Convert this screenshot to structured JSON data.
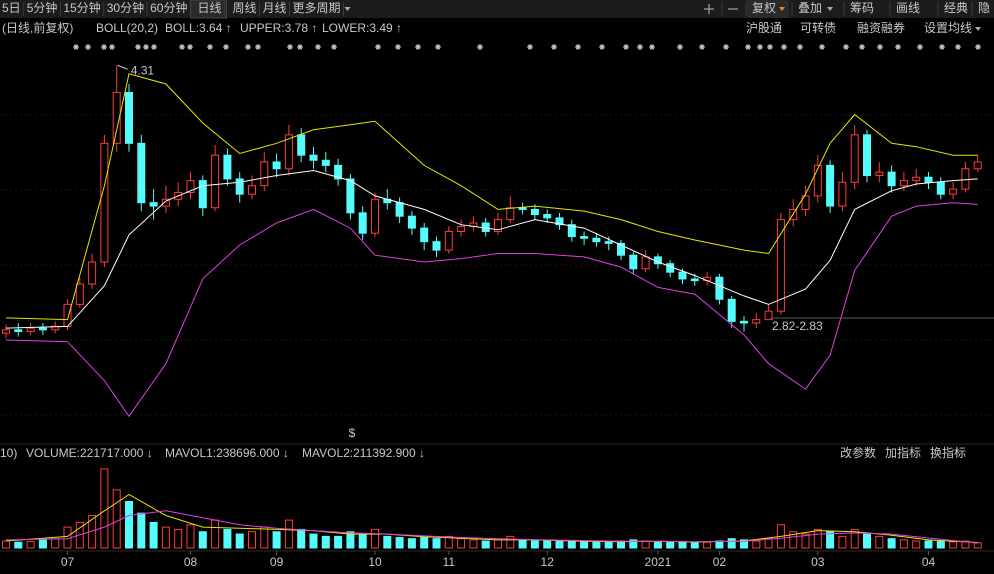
{
  "toolbar": {
    "periods_before": [
      "5日",
      "5分钟",
      "15分钟",
      "30分钟",
      "60分钟"
    ],
    "active_period": "日线",
    "periods_after": [
      "周线",
      "月线",
      "更多周期"
    ],
    "adjust": "复权",
    "tools": [
      "叠加",
      "筹码",
      "画线",
      "经典",
      "隐"
    ]
  },
  "info_bar": {
    "mode": "(日线,前复权)",
    "links": [
      "沪股通",
      "可转债",
      "融资融券",
      "设置均线"
    ]
  },
  "volume_bar": {
    "params": "10)",
    "links": [
      "改参数",
      "加指标",
      "换指标"
    ]
  },
  "chart_data": {
    "type": "candlestick",
    "x": [
      null,
      null,
      null,
      null,
      null,
      "07",
      null,
      null,
      null,
      null,
      null,
      null,
      null,
      null,
      null,
      "08",
      null,
      null,
      null,
      null,
      null,
      null,
      "09",
      null,
      null,
      null,
      null,
      null,
      null,
      null,
      "10",
      null,
      null,
      null,
      null,
      null,
      "11",
      null,
      null,
      null,
      null,
      null,
      null,
      null,
      "12",
      null,
      null,
      null,
      null,
      null,
      null,
      null,
      null,
      "2021",
      null,
      null,
      null,
      null,
      "02",
      null,
      null,
      null,
      null,
      null,
      null,
      null,
      "03",
      null,
      null,
      null,
      null,
      null,
      null,
      null,
      null,
      "04",
      null,
      null,
      null,
      null
    ],
    "open": [
      2.73,
      2.75,
      2.74,
      2.76,
      2.75,
      2.77,
      2.9,
      3.02,
      3.15,
      3.85,
      4.15,
      3.85,
      3.5,
      3.48,
      3.52,
      3.56,
      3.63,
      3.47,
      3.78,
      3.64,
      3.55,
      3.6,
      3.74,
      3.7,
      3.9,
      3.78,
      3.75,
      3.72,
      3.64,
      3.44,
      3.32,
      3.52,
      3.5,
      3.42,
      3.35,
      3.27,
      3.22,
      3.33,
      3.36,
      3.38,
      3.33,
      3.4,
      3.47,
      3.46,
      3.43,
      3.41,
      3.37,
      3.3,
      3.29,
      3.27,
      3.26,
      3.19,
      3.11,
      3.18,
      3.14,
      3.09,
      3.05,
      3.04,
      3.06,
      2.93,
      2.8,
      2.79,
      2.81,
      2.86,
      3.4,
      3.46,
      3.54,
      3.72,
      3.48,
      3.62,
      3.9,
      3.66,
      3.68,
      3.6,
      3.63,
      3.65,
      3.62,
      3.55,
      3.58,
      3.7
    ],
    "high": [
      2.78,
      2.79,
      2.79,
      2.79,
      2.8,
      2.93,
      3.06,
      3.2,
      3.9,
      4.31,
      4.2,
      3.9,
      3.58,
      3.6,
      3.62,
      3.68,
      3.66,
      3.84,
      3.82,
      3.68,
      3.66,
      3.8,
      3.79,
      3.96,
      3.94,
      3.83,
      3.8,
      3.76,
      3.67,
      3.48,
      3.56,
      3.58,
      3.53,
      3.45,
      3.38,
      3.3,
      3.36,
      3.4,
      3.42,
      3.41,
      3.44,
      3.54,
      3.5,
      3.49,
      3.46,
      3.44,
      3.4,
      3.33,
      3.32,
      3.3,
      3.28,
      3.21,
      3.22,
      3.2,
      3.16,
      3.11,
      3.08,
      3.09,
      3.08,
      2.95,
      2.83,
      2.85,
      2.9,
      3.44,
      3.52,
      3.6,
      3.78,
      3.75,
      3.68,
      3.96,
      3.93,
      3.74,
      3.72,
      3.68,
      3.7,
      3.68,
      3.65,
      3.62,
      3.74,
      3.78
    ],
    "low": [
      2.7,
      2.71,
      2.72,
      2.72,
      2.73,
      2.75,
      2.88,
      2.99,
      3.12,
      3.8,
      3.8,
      3.45,
      3.4,
      3.44,
      3.48,
      3.52,
      3.42,
      3.45,
      3.6,
      3.5,
      3.52,
      3.57,
      3.65,
      3.66,
      3.74,
      3.7,
      3.68,
      3.6,
      3.4,
      3.28,
      3.3,
      3.46,
      3.38,
      3.31,
      3.22,
      3.18,
      3.2,
      3.3,
      3.33,
      3.3,
      3.31,
      3.38,
      3.43,
      3.4,
      3.38,
      3.34,
      3.27,
      3.25,
      3.24,
      3.22,
      3.16,
      3.08,
      3.09,
      3.11,
      3.06,
      3.02,
      3.01,
      3.01,
      2.9,
      2.76,
      2.74,
      2.76,
      2.82,
      2.84,
      3.36,
      3.42,
      3.5,
      3.44,
      3.45,
      3.58,
      3.62,
      3.62,
      3.56,
      3.57,
      3.6,
      3.58,
      3.52,
      3.52,
      3.56,
      3.68
    ],
    "close": [
      2.75,
      2.74,
      2.76,
      2.75,
      2.77,
      2.9,
      3.02,
      3.15,
      3.85,
      4.15,
      3.85,
      3.5,
      3.48,
      3.52,
      3.56,
      3.63,
      3.47,
      3.78,
      3.64,
      3.55,
      3.6,
      3.74,
      3.7,
      3.9,
      3.78,
      3.75,
      3.72,
      3.64,
      3.44,
      3.32,
      3.52,
      3.5,
      3.42,
      3.35,
      3.27,
      3.22,
      3.33,
      3.36,
      3.38,
      3.33,
      3.4,
      3.47,
      3.46,
      3.43,
      3.41,
      3.37,
      3.3,
      3.29,
      3.27,
      3.26,
      3.19,
      3.11,
      3.18,
      3.14,
      3.09,
      3.05,
      3.04,
      3.06,
      2.93,
      2.8,
      2.79,
      2.81,
      2.86,
      3.4,
      3.46,
      3.54,
      3.72,
      3.48,
      3.62,
      3.9,
      3.66,
      3.68,
      3.6,
      3.63,
      3.65,
      3.62,
      3.55,
      3.58,
      3.7,
      3.74
    ],
    "up_color": "#ff3b3b",
    "down_color": "#54fcfc",
    "ylim": [
      2.1,
      4.43
    ],
    "indicator": "BOLL(20,2)",
    "bands": [
      {
        "legend": "BOLL:3.64 ↑",
        "color": "#ffffff",
        "x": [
          0,
          5,
          8,
          10,
          13,
          16,
          19,
          22,
          25,
          28,
          30,
          34,
          37,
          40,
          43,
          47,
          50,
          53,
          56,
          60,
          62,
          65,
          67,
          69,
          72,
          74,
          77,
          79
        ],
        "values": [
          2.76,
          2.77,
          3.01,
          3.31,
          3.51,
          3.6,
          3.62,
          3.66,
          3.69,
          3.63,
          3.54,
          3.46,
          3.37,
          3.34,
          3.4,
          3.35,
          3.25,
          3.15,
          3.07,
          2.95,
          2.9,
          2.99,
          3.16,
          3.46,
          3.57,
          3.61,
          3.63,
          3.64
        ]
      },
      {
        "legend": "UPPER:3.78 ↑",
        "color": "#e6e600",
        "x": [
          0,
          5,
          8,
          10,
          13,
          16,
          19,
          22,
          25,
          28,
          30,
          34,
          37,
          40,
          43,
          47,
          50,
          53,
          56,
          60,
          62,
          65,
          67,
          69,
          72,
          74,
          77,
          79
        ],
        "values": [
          2.82,
          2.81,
          3.6,
          4.26,
          4.2,
          3.97,
          3.79,
          3.85,
          3.93,
          3.96,
          3.98,
          3.72,
          3.6,
          3.46,
          3.48,
          3.45,
          3.4,
          3.33,
          3.28,
          3.22,
          3.2,
          3.55,
          3.85,
          4.02,
          3.85,
          3.83,
          3.78,
          3.78
        ]
      },
      {
        "legend": "LOWER:3.49 ↑",
        "color": "#e040e0",
        "x": [
          0,
          5,
          8,
          10,
          13,
          16,
          19,
          22,
          25,
          28,
          30,
          34,
          37,
          40,
          43,
          47,
          50,
          53,
          56,
          60,
          62,
          65,
          67,
          69,
          72,
          74,
          77,
          79
        ],
        "values": [
          2.69,
          2.68,
          2.45,
          2.24,
          2.55,
          3.05,
          3.25,
          3.38,
          3.46,
          3.35,
          3.19,
          3.15,
          3.17,
          3.2,
          3.2,
          3.18,
          3.12,
          3.0,
          2.96,
          2.72,
          2.55,
          2.4,
          2.6,
          3.1,
          3.42,
          3.48,
          3.5,
          3.49
        ]
      }
    ],
    "max_label": "4.31",
    "price_line": {
      "value": 2.82,
      "label": "2.82-2.83"
    },
    "dividend_marker": "$",
    "volume": {
      "values": [
        300000,
        250000,
        280000,
        350000,
        400000,
        900000,
        1100000,
        1400000,
        3400000,
        2500000,
        2000000,
        1500000,
        1100000,
        900000,
        800000,
        1000000,
        700000,
        1200000,
        800000,
        600000,
        700000,
        900000,
        700000,
        1200000,
        800000,
        600000,
        500000,
        500000,
        700000,
        600000,
        800000,
        500000,
        450000,
        400000,
        450000,
        400000,
        500000,
        400000,
        350000,
        300000,
        350000,
        500000,
        350000,
        300000,
        300000,
        280000,
        300000,
        280000,
        250000,
        260000,
        300000,
        350000,
        300000,
        280000,
        250000,
        260000,
        240000,
        250000,
        300000,
        400000,
        350000,
        300000,
        400000,
        1000000,
        700000,
        600000,
        800000,
        700000,
        500000,
        800000,
        600000,
        500000,
        400000,
        350000,
        300000,
        300000,
        280000,
        260000,
        300000,
        221717
      ],
      "ylim": [
        0,
        3700000
      ],
      "legend": "VOLUME:221717.000 ↓",
      "series": [
        {
          "legend": "MAVOL1:238696.000 ↓",
          "color": "#e6e600",
          "x": [
            0,
            5,
            8,
            10,
            13,
            16,
            19,
            22,
            25,
            28,
            31,
            34,
            37,
            40,
            43,
            47,
            50,
            53,
            56,
            60,
            63,
            66,
            69,
            72,
            75,
            79
          ],
          "values": [
            300000,
            500000,
            1600000,
            2300000,
            1400000,
            900000,
            850000,
            800000,
            750000,
            600000,
            600000,
            480000,
            420000,
            350000,
            350000,
            290000,
            270000,
            290000,
            260000,
            300000,
            500000,
            750000,
            700000,
            550000,
            350000,
            238696
          ]
        },
        {
          "legend": "MAVOL2:211392.900 ↓",
          "color": "#e040e0",
          "x": [
            0,
            5,
            8,
            10,
            13,
            16,
            19,
            22,
            25,
            28,
            31,
            34,
            37,
            40,
            43,
            47,
            50,
            53,
            56,
            60,
            63,
            66,
            69,
            72,
            75,
            79
          ],
          "values": [
            350000,
            400000,
            900000,
            1400000,
            1600000,
            1300000,
            1000000,
            850000,
            750000,
            650000,
            600000,
            520000,
            450000,
            400000,
            360000,
            320000,
            290000,
            290000,
            270000,
            290000,
            420000,
            600000,
            650000,
            600000,
            430000,
            211392.9
          ]
        }
      ]
    }
  }
}
